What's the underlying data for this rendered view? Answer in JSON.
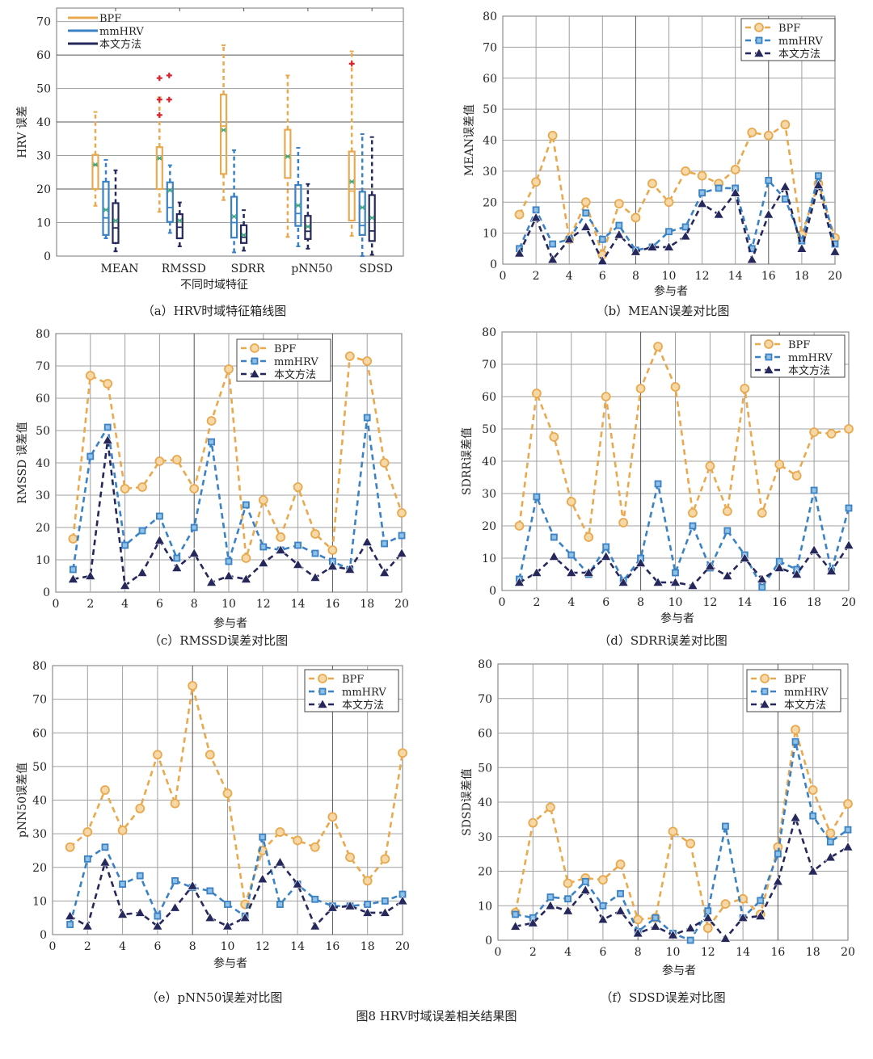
{
  "figure_caption": "图8    HRV时域误差相关结果图",
  "colors": {
    "BPF": "#E9A94F",
    "mmHRV": "#3B82C4",
    "本文方法": "#26285C",
    "mean_marker": "#3AA57A",
    "outlier": "#D8202E",
    "grid": "#A0A0A0"
  },
  "chart_data": [
    {
      "type": "box",
      "caption": "（a）HRV时域特征箱线图",
      "xlabel": "不同时域特征",
      "ylabel": "HRV 误差",
      "ylim": [
        0,
        74
      ],
      "yticks": [
        0,
        10,
        20,
        30,
        40,
        50,
        60,
        70
      ],
      "grid": "horizontal",
      "legend": "top-left",
      "categories": [
        "MEAN",
        "RMSSD",
        "SDRR",
        "pNN50",
        "SDSD"
      ],
      "series": [
        {
          "name": "BPF",
          "boxes": [
            {
              "min": 15,
              "q1": 20,
              "median": 27,
              "q3": 30.2,
              "max": 43,
              "mean": 27.3,
              "outliers": []
            },
            {
              "min": 13.2,
              "q1": 20,
              "median": 29,
              "q3": 32.5,
              "max": 47.4,
              "mean": 29.2,
              "outliers": [
                53.1,
                53.9,
                46.7,
                46.7,
                42.1
              ]
            },
            {
              "min": 16.7,
              "q1": 24.5,
              "median": 38.8,
              "q3": 48.2,
              "max": 62.9,
              "mean": 37.6,
              "outliers": []
            },
            {
              "min": 5.7,
              "q1": 23.3,
              "median": 29.8,
              "q3": 37.7,
              "max": 53.9,
              "mean": 29.7,
              "outliers": []
            },
            {
              "min": 6,
              "q1": 10.6,
              "median": 19.4,
              "q3": 31.2,
              "max": 61.1,
              "mean": 22.2,
              "outliers": [
                57.4
              ]
            }
          ]
        },
        {
          "name": "mmHRV",
          "boxes": [
            {
              "min": 5.3,
              "q1": 6.3,
              "median": 11.4,
              "q3": 22.2,
              "max": 28.7,
              "mean": 13.8,
              "outliers": []
            },
            {
              "min": 6.9,
              "q1": 10.2,
              "median": 14.5,
              "q3": 22,
              "max": 27.1,
              "mean": 19.6,
              "outliers": []
            },
            {
              "min": 1.1,
              "q1": 5.5,
              "median": 10,
              "q3": 17.7,
              "max": 31.6,
              "mean": 11.8,
              "outliers": []
            },
            {
              "min": 2.9,
              "q1": 9,
              "median": 12.7,
              "q3": 21.2,
              "max": 32.3,
              "mean": 15.1,
              "outliers": []
            },
            {
              "min": 0,
              "q1": 6.3,
              "median": 9.1,
              "q3": 19.2,
              "max": 36.4,
              "mean": 14.5,
              "outliers": []
            }
          ]
        },
        {
          "name": "本文方法",
          "boxes": [
            {
              "min": 1.4,
              "q1": 3.9,
              "median": 8.4,
              "q3": 15.8,
              "max": 25.6,
              "mean": 10.6,
              "outliers": []
            },
            {
              "min": 2.9,
              "q1": 5.3,
              "median": 8.6,
              "q3": 12.5,
              "max": 16,
              "mean": 10.6,
              "outliers": []
            },
            {
              "min": 1.6,
              "q1": 3.9,
              "median": 5.6,
              "q3": 9.2,
              "max": 13.7,
              "mean": 6.3,
              "outliers": []
            },
            {
              "min": 2.2,
              "q1": 5.1,
              "median": 7.4,
              "q3": 12,
              "max": 21.5,
              "mean": 8.8,
              "outliers": []
            },
            {
              "min": 0.4,
              "q1": 4.5,
              "median": 7.5,
              "q3": 18.2,
              "max": 35.5,
              "mean": 11.4,
              "outliers": []
            }
          ]
        }
      ]
    },
    {
      "type": "line",
      "caption": "（b）MEAN误差对比图",
      "xlabel": "参与者",
      "ylabel": "MEAN误差值",
      "xlim": [
        0,
        20
      ],
      "ylim": [
        0,
        80
      ],
      "xticks": [
        0,
        2,
        4,
        6,
        8,
        10,
        12,
        14,
        16,
        18,
        20
      ],
      "yticks": [
        0,
        10,
        20,
        30,
        40,
        50,
        60,
        70,
        80
      ],
      "grid": true,
      "legend": "top-right",
      "x": [
        1,
        2,
        3,
        4,
        5,
        6,
        7,
        8,
        9,
        10,
        11,
        12,
        13,
        14,
        15,
        16,
        17,
        18,
        19,
        20
      ],
      "series": [
        {
          "name": "BPF",
          "marker": "circle",
          "values": [
            16,
            26.5,
            41.5,
            8,
            20,
            3,
            19.5,
            15,
            26,
            20,
            30,
            28.5,
            26,
            30.5,
            42.5,
            41.5,
            45,
            9.5,
            26,
            8.5
          ]
        },
        {
          "name": "mmHRV",
          "marker": "square",
          "values": [
            5,
            17.5,
            6.5,
            8,
            16.5,
            8,
            12.5,
            4.5,
            5.5,
            10.5,
            12,
            23,
            24.5,
            24.5,
            5,
            27,
            21,
            7.5,
            28.5,
            6.5
          ]
        },
        {
          "name": "本文方法",
          "marker": "triangle",
          "values": [
            3.5,
            15,
            1.5,
            8,
            12,
            1,
            9.5,
            4,
            5.5,
            5.5,
            9,
            19.5,
            16,
            23,
            1.5,
            16,
            25,
            5,
            25.5,
            4
          ]
        }
      ]
    },
    {
      "type": "line",
      "caption": "（c）RMSSD误差对比图",
      "xlabel": "参与者",
      "ylabel": "RMSSD 误差值",
      "xlim": [
        0,
        20
      ],
      "ylim": [
        0,
        80
      ],
      "xticks": [
        0,
        2,
        4,
        6,
        8,
        10,
        12,
        14,
        16,
        18,
        20
      ],
      "yticks": [
        0,
        10,
        20,
        30,
        40,
        50,
        60,
        70,
        80
      ],
      "grid": true,
      "legend": "top-center",
      "x": [
        1,
        2,
        3,
        4,
        5,
        6,
        7,
        8,
        9,
        10,
        11,
        12,
        13,
        14,
        15,
        16,
        17,
        18,
        19,
        20
      ],
      "series": [
        {
          "name": "BPF",
          "marker": "circle",
          "values": [
            16.5,
            67,
            64.5,
            32,
            32.5,
            40.5,
            41,
            32,
            53,
            69,
            10.5,
            28.5,
            17,
            32.5,
            18,
            13,
            73,
            71.5,
            40,
            24.5
          ]
        },
        {
          "name": "mmHRV",
          "marker": "square",
          "values": [
            7,
            42,
            51,
            14.5,
            19,
            23.5,
            10.5,
            20,
            46.5,
            9.5,
            27,
            14,
            13,
            14.5,
            12,
            9.5,
            7,
            54,
            15,
            17.5
          ]
        },
        {
          "name": "本文方法",
          "marker": "triangle",
          "values": [
            4,
            5,
            47,
            2,
            6,
            16,
            7.5,
            12,
            3,
            5,
            4,
            9,
            13,
            8.5,
            4.5,
            8,
            7,
            15.5,
            6,
            12
          ]
        }
      ]
    },
    {
      "type": "line",
      "caption": "（d）SDRR误差对比图",
      "xlabel": "参与者",
      "ylabel": "SDRR误差值",
      "xlim": [
        0,
        20
      ],
      "ylim": [
        0,
        80
      ],
      "xticks": [
        0,
        2,
        4,
        6,
        8,
        10,
        12,
        14,
        16,
        18,
        20
      ],
      "yticks": [
        0,
        10,
        20,
        30,
        40,
        50,
        60,
        70,
        80
      ],
      "grid": true,
      "legend": "top-right",
      "x": [
        1,
        2,
        3,
        4,
        5,
        6,
        7,
        8,
        9,
        10,
        11,
        12,
        13,
        14,
        15,
        16,
        17,
        18,
        19,
        20
      ],
      "series": [
        {
          "name": "BPF",
          "marker": "circle",
          "values": [
            20,
            61,
            47.5,
            27.5,
            16.5,
            60,
            21,
            62.5,
            75.5,
            63,
            24,
            38.5,
            24.5,
            62.5,
            24,
            39,
            35.5,
            49,
            48.5,
            50
          ]
        },
        {
          "name": "mmHRV",
          "marker": "square",
          "values": [
            3.5,
            29,
            16.5,
            11,
            5,
            13.5,
            3,
            10,
            33,
            5.5,
            20,
            7,
            18.5,
            11,
            1,
            9,
            6.5,
            31,
            6,
            25.5
          ]
        },
        {
          "name": "本文方法",
          "marker": "triangle",
          "values": [
            2.5,
            5.5,
            10.5,
            5.5,
            5.5,
            10.5,
            2.5,
            8.5,
            2.5,
            2.5,
            1.5,
            7.5,
            4.5,
            10,
            3.5,
            7,
            5,
            12.5,
            6,
            14
          ]
        }
      ]
    },
    {
      "type": "line",
      "caption": "（e）pNN50误差对比图",
      "xlabel": "参与者",
      "ylabel": "pNN50误差值",
      "xlim": [
        0,
        20
      ],
      "ylim": [
        0,
        80
      ],
      "xticks": [
        0,
        2,
        4,
        6,
        8,
        10,
        12,
        14,
        16,
        18,
        20
      ],
      "yticks": [
        0,
        10,
        20,
        30,
        40,
        50,
        60,
        70,
        80
      ],
      "grid": true,
      "legend": "top-right",
      "x": [
        1,
        2,
        3,
        4,
        5,
        6,
        7,
        8,
        9,
        10,
        11,
        12,
        13,
        14,
        15,
        16,
        17,
        18,
        19,
        20
      ],
      "series": [
        {
          "name": "BPF",
          "marker": "circle",
          "values": [
            26,
            30.5,
            43,
            31,
            37.5,
            53.5,
            39,
            74,
            53.5,
            42,
            9,
            25,
            30.5,
            28,
            26,
            35,
            23,
            16,
            22.5,
            54
          ]
        },
        {
          "name": "mmHRV",
          "marker": "square",
          "values": [
            3,
            22.5,
            26,
            15,
            17.5,
            5.5,
            16,
            14,
            13,
            9,
            5.5,
            29,
            9,
            15,
            10.5,
            8.5,
            8.5,
            9,
            10,
            12
          ]
        },
        {
          "name": "本文方法",
          "marker": "triangle",
          "values": [
            5.5,
            2.5,
            21.5,
            6,
            6.5,
            2.5,
            8,
            14.5,
            5,
            2.5,
            5,
            16.5,
            21.5,
            15,
            2.5,
            8,
            8.5,
            6.5,
            6.5,
            10
          ]
        }
      ]
    },
    {
      "type": "line",
      "caption": "（f）SDSD误差对比图",
      "xlabel": "参与者",
      "ylabel": "SDSD误差值",
      "xlim": [
        0,
        20
      ],
      "ylim": [
        0,
        80
      ],
      "xticks": [
        0,
        2,
        4,
        6,
        8,
        10,
        12,
        14,
        16,
        18,
        20
      ],
      "yticks": [
        0,
        10,
        20,
        30,
        40,
        50,
        60,
        70,
        80
      ],
      "grid": true,
      "legend": "top-right",
      "x": [
        1,
        2,
        3,
        4,
        5,
        6,
        7,
        8,
        9,
        10,
        11,
        12,
        13,
        14,
        15,
        16,
        17,
        18,
        19,
        20
      ],
      "series": [
        {
          "name": "BPF",
          "marker": "circle",
          "values": [
            8,
            34,
            38.5,
            16.5,
            18,
            17.5,
            22,
            6,
            6.5,
            31.5,
            28,
            3.5,
            10.5,
            12,
            7.5,
            27,
            61,
            43.5,
            31,
            39.5
          ]
        },
        {
          "name": "mmHRV",
          "marker": "square",
          "values": [
            7.5,
            6.5,
            12.5,
            12,
            17,
            10,
            13.5,
            2.5,
            6.5,
            2,
            0,
            8.5,
            33,
            6.5,
            11.5,
            25,
            57.5,
            36,
            28.5,
            32
          ]
        },
        {
          "name": "本文方法",
          "marker": "triangle",
          "values": [
            4,
            5,
            10,
            8.5,
            14.5,
            6,
            8.5,
            2,
            4,
            1.5,
            3.5,
            6.5,
            0.5,
            6.5,
            7,
            17,
            35.5,
            20,
            24,
            27
          ]
        }
      ]
    }
  ]
}
